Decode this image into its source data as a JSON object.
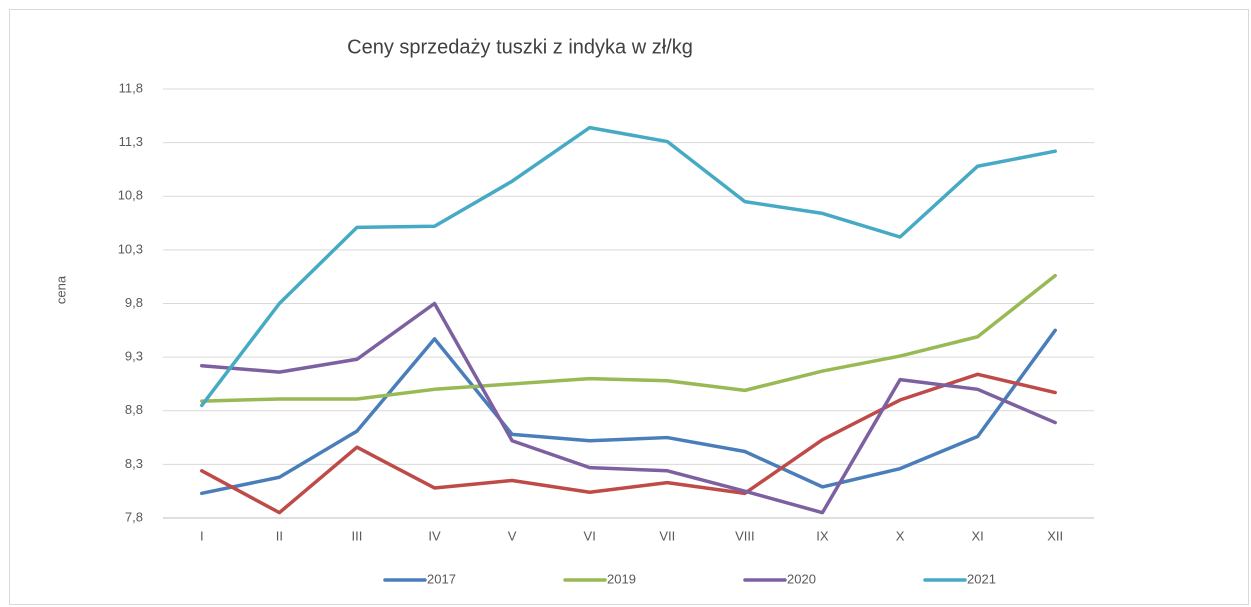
{
  "chart_data": {
    "type": "line",
    "title": "Ceny sprzedaży tuszki z indyka w zł/kg",
    "y_label": "cena",
    "categories": [
      "I",
      "II",
      "III",
      "IV",
      "V",
      "VI",
      "VII",
      "VIII",
      "IX",
      "X",
      "XI",
      "XII"
    ],
    "series": [
      {
        "name": "2017",
        "color": "#4a7ebb",
        "values": [
          8.03,
          8.18,
          8.61,
          9.47,
          8.58,
          8.52,
          8.55,
          8.42,
          8.09,
          8.26,
          8.56,
          9.55
        ]
      },
      {
        "color": "#be4b48",
        "values": [
          8.24,
          7.85,
          8.46,
          8.08,
          8.15,
          8.04,
          8.13,
          8.03,
          8.53,
          8.9,
          9.14,
          8.97
        ]
      },
      {
        "name": "2019",
        "color": "#98b954",
        "values": [
          8.89,
          8.91,
          8.91,
          9.0,
          9.05,
          9.1,
          9.08,
          8.99,
          9.17,
          9.31,
          9.49,
          10.06
        ]
      },
      {
        "name": "2020",
        "color": "#7d60a0",
        "values": [
          9.22,
          9.16,
          9.28,
          9.8,
          8.52,
          8.27,
          8.24,
          8.05,
          7.85,
          9.09,
          9.0,
          8.69
        ]
      },
      {
        "name": "2021",
        "color": "#46aac5",
        "values": [
          8.85,
          9.8,
          10.51,
          10.52,
          10.94,
          11.44,
          11.31,
          10.75,
          10.64,
          10.42,
          11.08,
          11.22
        ]
      }
    ],
    "ylim": [
      7.8,
      11.8
    ],
    "yticks": [
      {
        "value": 7.8,
        "label": "7,8"
      },
      {
        "value": 8.3,
        "label": "8,3"
      },
      {
        "value": 8.8,
        "label": "8,8"
      },
      {
        "value": 9.3,
        "label": "9,3"
      },
      {
        "value": 9.8,
        "label": "9,8"
      },
      {
        "value": 10.3,
        "label": "10,3"
      },
      {
        "value": 10.8,
        "label": "10,8"
      },
      {
        "value": 11.3,
        "label": "11,3"
      },
      {
        "value": 11.8,
        "label": "11,8"
      }
    ],
    "grid": true,
    "legend": "bottom"
  }
}
